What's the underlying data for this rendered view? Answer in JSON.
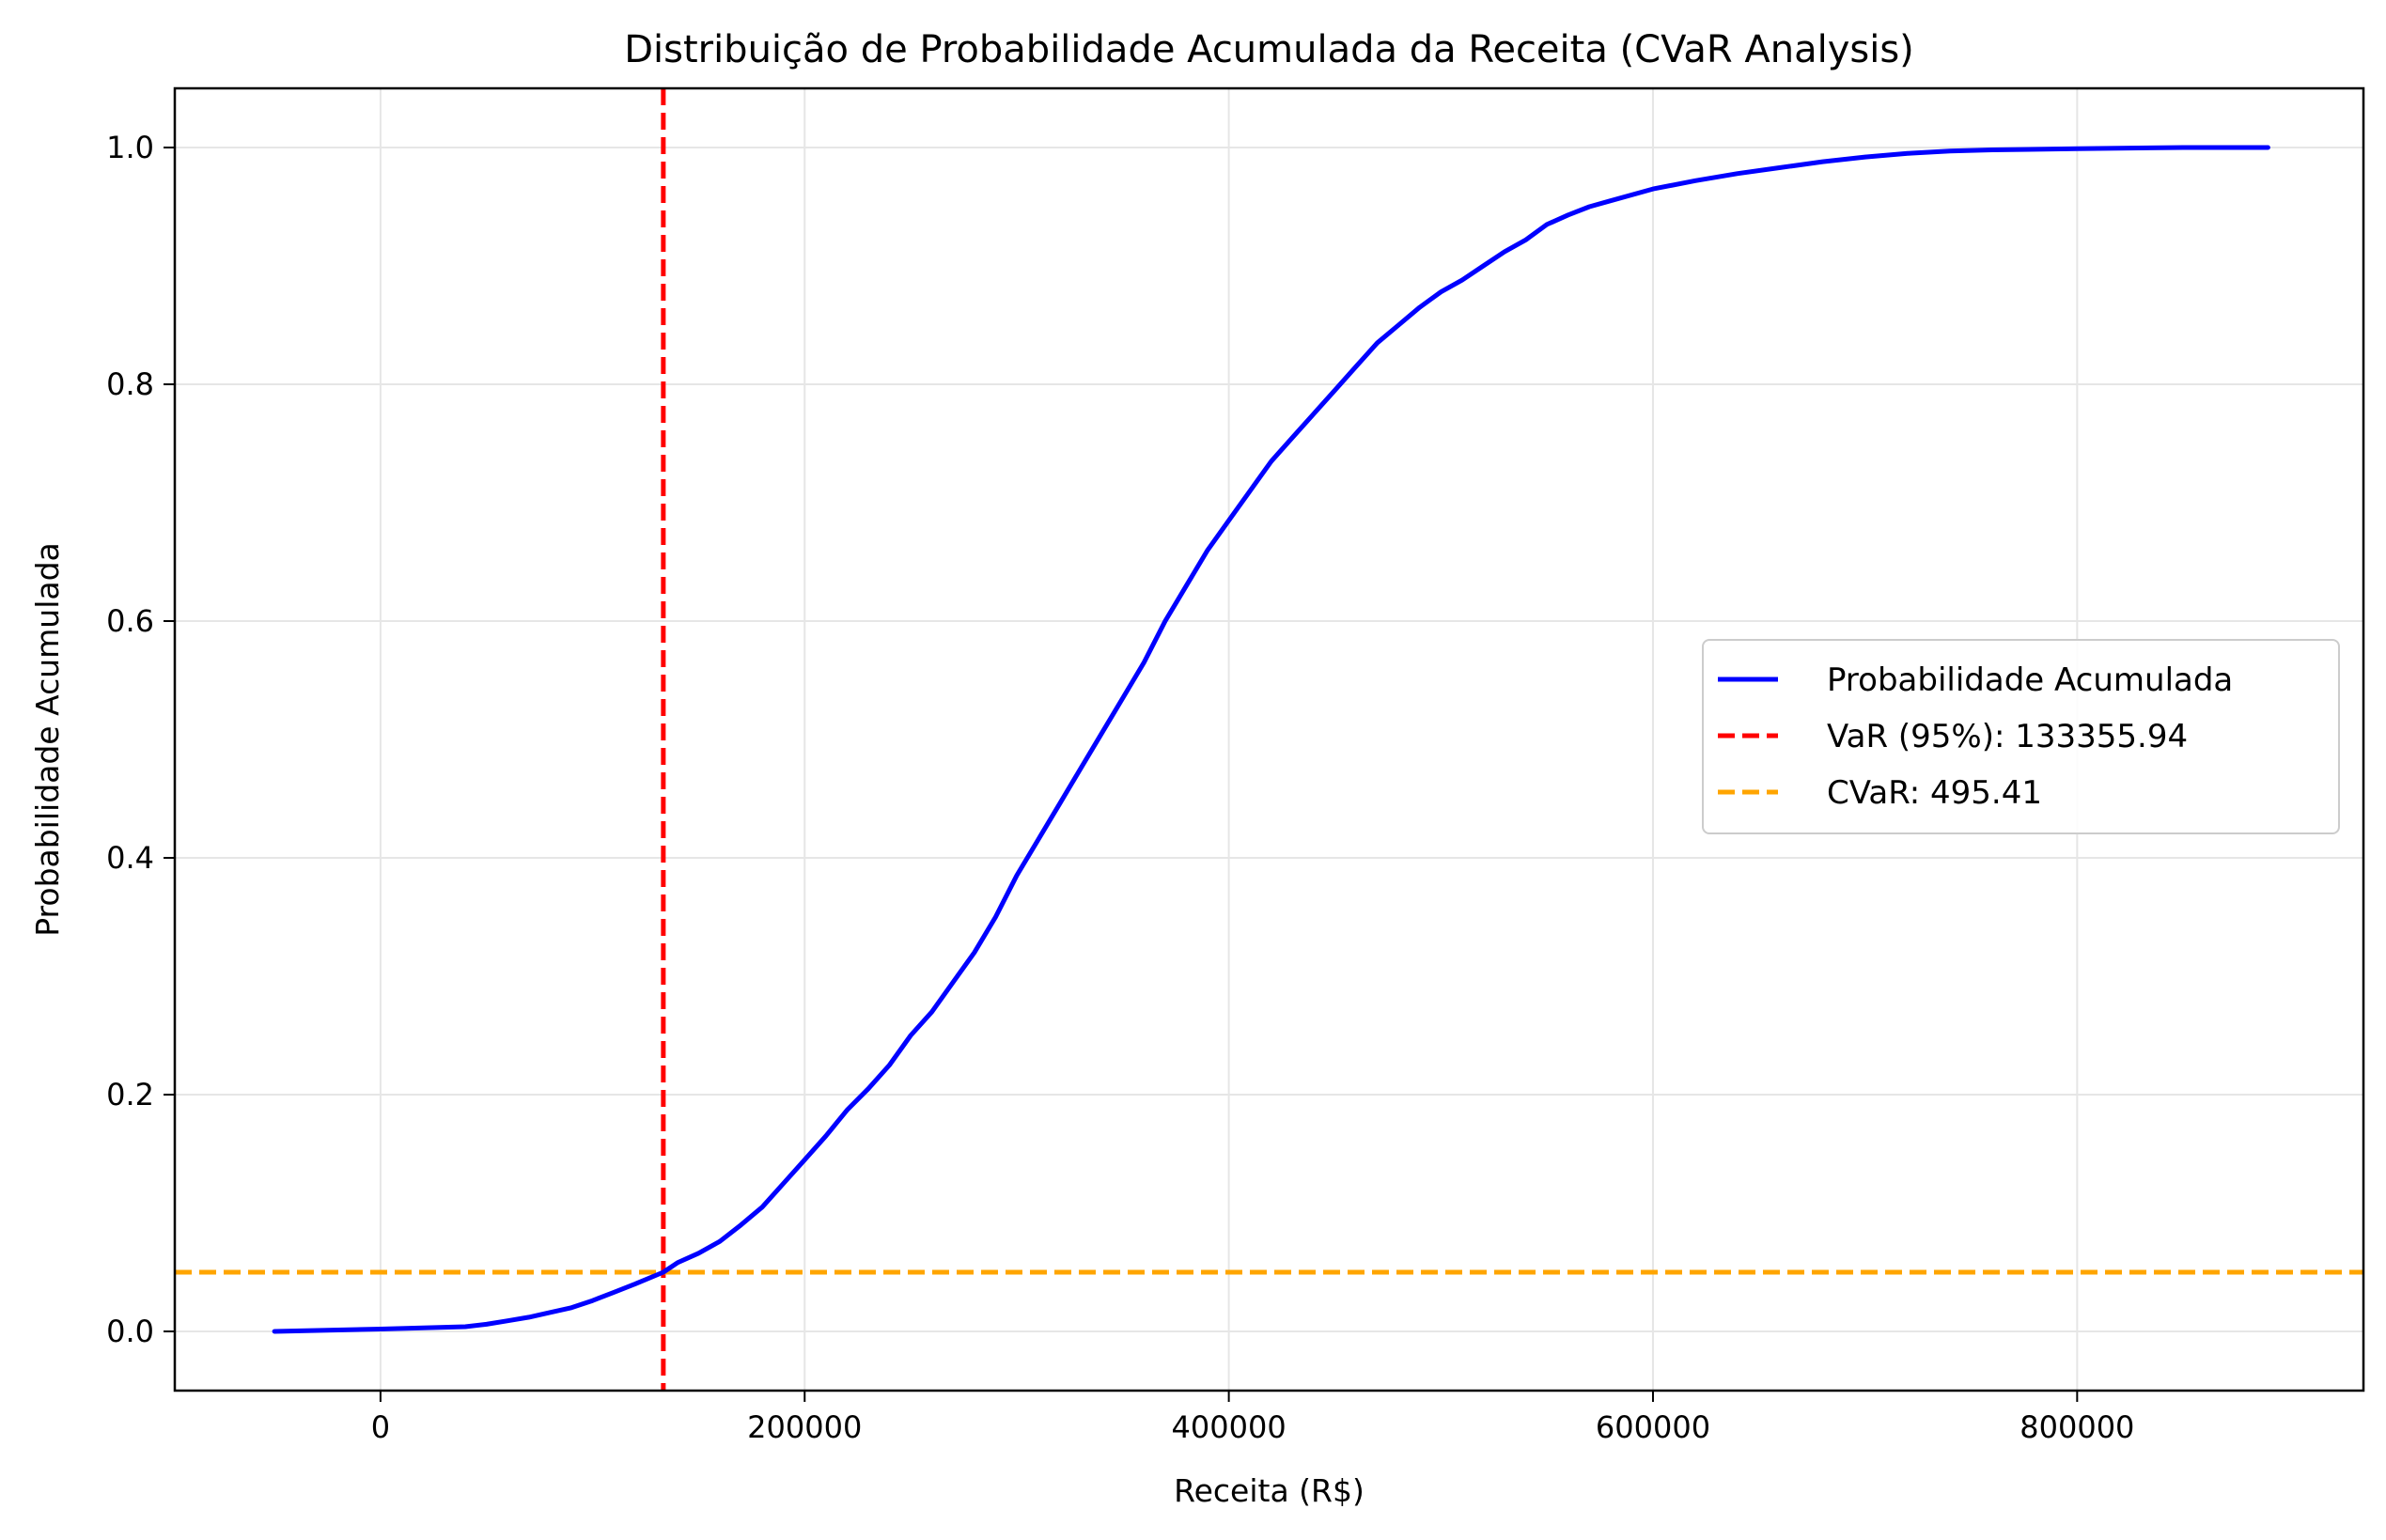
{
  "chart_data": {
    "type": "line",
    "title": "Distribuição de Probabilidade Acumulada da Receita (CVaR Analysis)",
    "xlabel": "Receita (R$)",
    "ylabel": "Probabilidade Acumulada",
    "xlim": [
      -97000,
      935000
    ],
    "ylim": [
      -0.05,
      1.05
    ],
    "x_ticks": [
      0,
      200000,
      400000,
      600000,
      800000
    ],
    "x_tick_labels": [
      "0",
      "200000",
      "400000",
      "600000",
      "800000"
    ],
    "y_ticks": [
      0.0,
      0.2,
      0.4,
      0.6,
      0.8,
      1.0
    ],
    "y_tick_labels": [
      "0.0",
      "0.2",
      "0.4",
      "0.6",
      "0.8",
      "1.0"
    ],
    "grid": true,
    "legend_position": "center-right",
    "series": [
      {
        "name": "Probabilidade Acumulada",
        "color": "#0000ff",
        "style": "solid",
        "x": [
          -50000,
          0,
          20000,
          40000,
          50000,
          60000,
          70000,
          80000,
          90000,
          100000,
          110000,
          120000,
          133356,
          140000,
          150000,
          160000,
          170000,
          180000,
          190000,
          200000,
          210000,
          220000,
          230000,
          240000,
          250000,
          260000,
          270000,
          280000,
          290000,
          300000,
          310000,
          320000,
          330000,
          340000,
          350000,
          360000,
          370000,
          380000,
          390000,
          400000,
          410000,
          420000,
          430000,
          440000,
          450000,
          460000,
          470000,
          480000,
          490000,
          500000,
          510000,
          520000,
          530000,
          540000,
          550000,
          560000,
          570000,
          580000,
          600000,
          620000,
          640000,
          660000,
          680000,
          700000,
          720000,
          740000,
          760000,
          800000,
          850000,
          890000
        ],
        "y": [
          0.0,
          0.002,
          0.003,
          0.004,
          0.006,
          0.009,
          0.012,
          0.016,
          0.02,
          0.026,
          0.033,
          0.04,
          0.05,
          0.058,
          0.066,
          0.076,
          0.09,
          0.105,
          0.125,
          0.145,
          0.165,
          0.187,
          0.205,
          0.225,
          0.25,
          0.27,
          0.295,
          0.32,
          0.35,
          0.385,
          0.415,
          0.445,
          0.475,
          0.505,
          0.535,
          0.565,
          0.6,
          0.63,
          0.66,
          0.685,
          0.71,
          0.735,
          0.755,
          0.775,
          0.795,
          0.815,
          0.835,
          0.85,
          0.865,
          0.878,
          0.888,
          0.9,
          0.912,
          0.922,
          0.935,
          0.943,
          0.95,
          0.955,
          0.965,
          0.972,
          0.978,
          0.983,
          0.988,
          0.992,
          0.995,
          0.997,
          0.998,
          0.999,
          1.0,
          1.0
        ]
      },
      {
        "name": "VaR (95%): 133355.94",
        "color": "#ff0000",
        "style": "dashed",
        "orientation": "vertical",
        "x_value": 133355.94
      },
      {
        "name": "CVaR: 495.41",
        "color": "#ffa500",
        "style": "dashed",
        "orientation": "horizontal",
        "y_value": 0.05
      }
    ]
  }
}
